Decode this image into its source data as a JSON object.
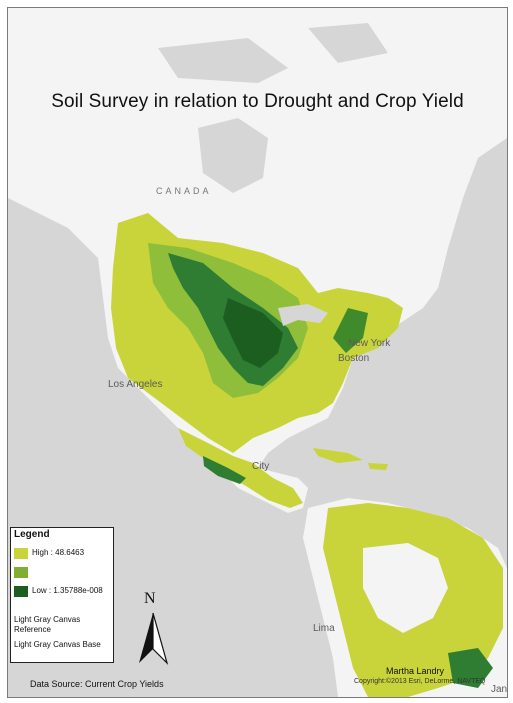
{
  "map": {
    "title": "Soil Survey in relation to Drought and Crop Yield",
    "places": {
      "canada": "CANADA",
      "new_york": "New York",
      "boston": "Boston",
      "los_angeles": "Los Angeles",
      "city": "City",
      "lima": "Lima",
      "jan": "Jan"
    }
  },
  "legend": {
    "title": "Legend",
    "high": "High : 48.6463",
    "low": "Low : 1.35788e-008",
    "ref": "Light Gray Canvas Reference",
    "base": "Light Gray Canvas Base",
    "colors": {
      "high": "#c8d43a",
      "mid": "#7fae32",
      "low": "#1b5e20"
    }
  },
  "north_arrow": {
    "label": "N"
  },
  "footer": {
    "source": "Data Source: Current Crop Yields",
    "author": "Martha Landry",
    "copyright": "Copyright:©2013 Esri, DeLorme, NAVTEQ"
  },
  "colors": {
    "ocean": "#d6d6d6",
    "land": "#f5f5f5",
    "crop_high": "#c8d43a",
    "crop_mid": "#8fbf3a",
    "crop_low": "#1b5e20"
  }
}
